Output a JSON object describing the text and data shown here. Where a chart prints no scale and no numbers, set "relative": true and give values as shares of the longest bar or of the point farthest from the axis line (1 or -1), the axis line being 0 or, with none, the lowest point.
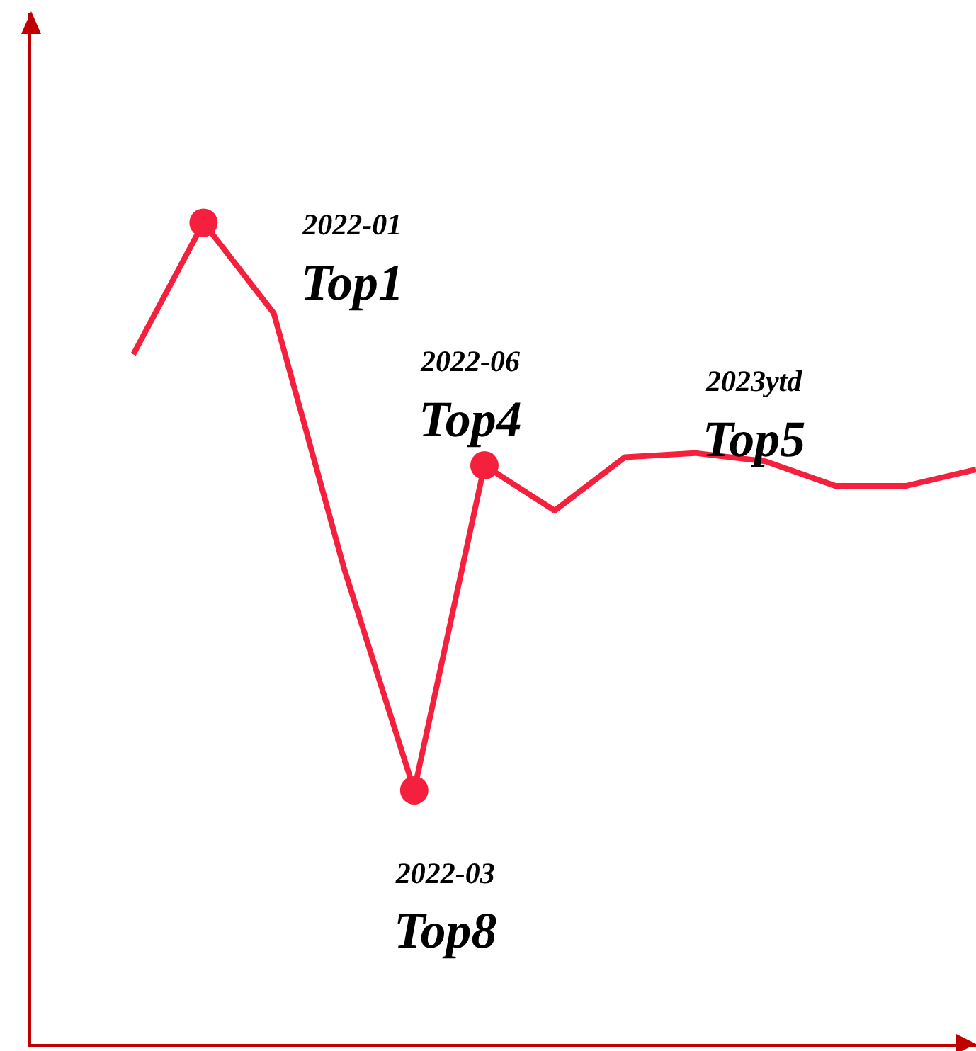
{
  "chart_data": {
    "type": "line",
    "relative": true,
    "categories": [
      null,
      null,
      null,
      null,
      null,
      null,
      null,
      null,
      null,
      null,
      null,
      null,
      null
    ],
    "series": [
      {
        "color": "#f5203e",
        "values": [
          0.84,
          1,
          0.89,
          0.58,
          0.31,
          0.705,
          0.65,
          0.715,
          0.72,
          0.71,
          0.68,
          0.68,
          0.7
        ]
      }
    ],
    "annotations": [
      "2022-01",
      "Top1",
      "2022-03",
      "Top8",
      "2022-06",
      "Top4",
      "2023ytd",
      "Top5"
    ],
    "grid": false,
    "legend": false
  }
}
